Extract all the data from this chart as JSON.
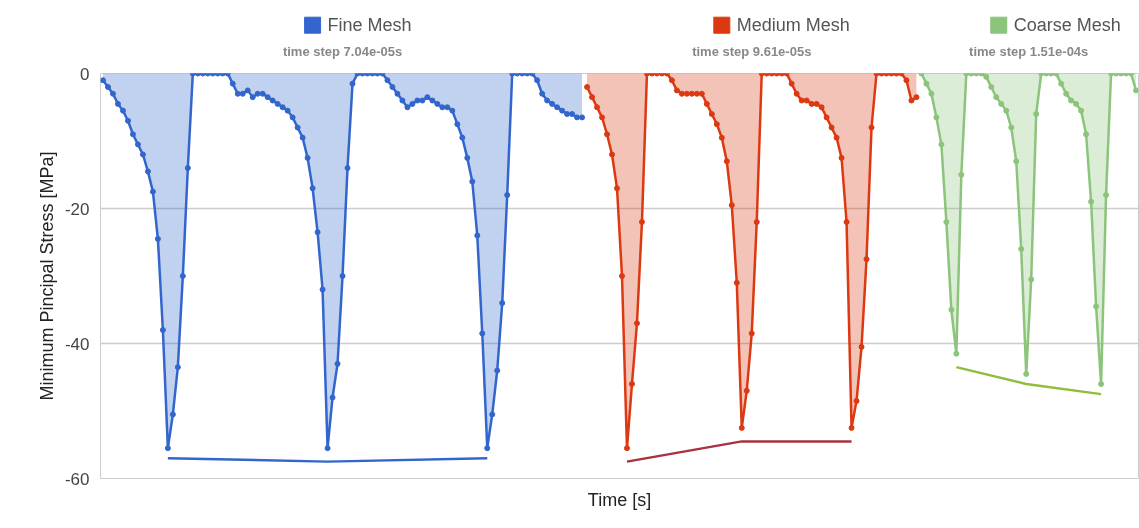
{
  "chart_data": {
    "type": "area",
    "xlabel": "Time [s]",
    "ylabel": "Minimum Pincipal Stress [MPa]",
    "categories": [
      null,
      null,
      null,
      null,
      null,
      null,
      null,
      null,
      null,
      null,
      null,
      null,
      null,
      null,
      null,
      null,
      null,
      null,
      null,
      null,
      null,
      null,
      null,
      null,
      null,
      null,
      null,
      null,
      null,
      null,
      null,
      null,
      null,
      null,
      null,
      null,
      null,
      null,
      null,
      null,
      null,
      null,
      null,
      null,
      null,
      null,
      null,
      null,
      null,
      null,
      null,
      null,
      null,
      null,
      null,
      null,
      null,
      null,
      null,
      null,
      null,
      null,
      null,
      null,
      null,
      null,
      null,
      null,
      null,
      null,
      null,
      null,
      null,
      null,
      null,
      null,
      null,
      null,
      null,
      null,
      null,
      null,
      null,
      null,
      null,
      null,
      null,
      null,
      null,
      null,
      null,
      null,
      null,
      null,
      null,
      null,
      null,
      null,
      null,
      null,
      null,
      null,
      null,
      null,
      null,
      null,
      null,
      null,
      null,
      null,
      null,
      null,
      null,
      null,
      null,
      null,
      null,
      null,
      null,
      null,
      null,
      null,
      null,
      null,
      null,
      null,
      null,
      null,
      null,
      null,
      null,
      null,
      null,
      null,
      null,
      null,
      null,
      null,
      null,
      null,
      null,
      null,
      null,
      null,
      null,
      null,
      null,
      null,
      null,
      null,
      null,
      null,
      null,
      null,
      null,
      null,
      null,
      null,
      null,
      null,
      null,
      null,
      null,
      null,
      null,
      null,
      null,
      null,
      null,
      null,
      null,
      null,
      null,
      null,
      null,
      null,
      null,
      null,
      null,
      null,
      null,
      null,
      null,
      null,
      null,
      null,
      null,
      null,
      null,
      null,
      null,
      null,
      null,
      null,
      null,
      null,
      null,
      null,
      null,
      null,
      null,
      null,
      null,
      null,
      null,
      null,
      null,
      null
    ],
    "ylim": [
      -60,
      0
    ],
    "yticks": [
      0,
      -20,
      -40,
      -60
    ],
    "grid": "y",
    "legend": "top",
    "marker": "circle",
    "tick_labels": "y",
    "annotations": [
      "time step 7.04e-05s",
      "time step 9.61e-05s",
      "time step 1.51e-04s"
    ],
    "series": [
      {
        "name": "Fine Mesh",
        "color": "#3366cc",
        "values": [
          -1,
          -2,
          -3,
          -4.5,
          -5.5,
          -7,
          -9,
          -10.5,
          -12,
          -14.5,
          -17.5,
          -24.5,
          -38,
          -55.5,
          -50.5,
          -43.5,
          -30,
          -14,
          0,
          0,
          0,
          0,
          0,
          0,
          0,
          0,
          -1.5,
          -3,
          -3,
          -2.5,
          -3.5,
          -3,
          -3,
          -3.5,
          -4,
          -4.5,
          -5,
          -5.5,
          -6.5,
          -8,
          -9.5,
          -12.5,
          -17,
          -23.5,
          -32,
          -55.5,
          -48,
          -43,
          -30,
          -14,
          -1.5,
          0,
          0,
          0,
          0,
          0,
          0,
          -1,
          -2,
          -3,
          -4,
          -5,
          -4.5,
          -4,
          -4,
          -3.5,
          -4,
          -4.5,
          -5,
          -5,
          -5.5,
          -7.5,
          -9.5,
          -12.5,
          -16,
          -24,
          -38.5,
          -55.5,
          -50.5,
          -44,
          -34,
          -18,
          0,
          0,
          0,
          0,
          0,
          -1,
          -3,
          -4,
          -4.5,
          -5,
          -5.5,
          -6,
          -6,
          -6.5,
          -6.5,
          null,
          null,
          null,
          null,
          null,
          null,
          null,
          null,
          null,
          null,
          null,
          null,
          null,
          null,
          null,
          null,
          null,
          null,
          null,
          null,
          null,
          null,
          null,
          null,
          null,
          null,
          null,
          null,
          null,
          null,
          null,
          null,
          null,
          null,
          null,
          null,
          null,
          null,
          null,
          null,
          null,
          null,
          null,
          null,
          null,
          null,
          null,
          null,
          null,
          null,
          null,
          null,
          null,
          null,
          null,
          null,
          null,
          null,
          null,
          null,
          null,
          null,
          null,
          null,
          null,
          null,
          null,
          null,
          null,
          null,
          null,
          null,
          null,
          null,
          null,
          null,
          null,
          null,
          null,
          null,
          null,
          null,
          null,
          null,
          null,
          null,
          null,
          null,
          null,
          null,
          null,
          null,
          null,
          null,
          null,
          null,
          null,
          null,
          null,
          null,
          null,
          null,
          null,
          null,
          null,
          null,
          null,
          null,
          null,
          null,
          null
        ]
      },
      {
        "name": "Medium Mesh",
        "color": "#dc3912",
        "values": [
          null,
          null,
          null,
          null,
          null,
          null,
          null,
          null,
          null,
          null,
          null,
          null,
          null,
          null,
          null,
          null,
          null,
          null,
          null,
          null,
          null,
          null,
          null,
          null,
          null,
          null,
          null,
          null,
          null,
          null,
          null,
          null,
          null,
          null,
          null,
          null,
          null,
          null,
          null,
          null,
          null,
          null,
          null,
          null,
          null,
          null,
          null,
          null,
          null,
          null,
          null,
          null,
          null,
          null,
          null,
          null,
          null,
          null,
          null,
          null,
          null,
          null,
          null,
          null,
          null,
          null,
          null,
          null,
          null,
          null,
          null,
          null,
          null,
          null,
          null,
          null,
          null,
          null,
          null,
          null,
          null,
          null,
          null,
          null,
          null,
          null,
          null,
          null,
          null,
          null,
          null,
          null,
          null,
          null,
          null,
          null,
          null,
          -2,
          -3.5,
          -5,
          -6.5,
          -9,
          -12,
          -17,
          -30,
          -55.5,
          -46,
          -37,
          -22,
          0,
          0,
          0,
          0,
          0,
          -1,
          -2.5,
          -3,
          -3,
          -3,
          -3,
          -3,
          -4.5,
          -6,
          -7.5,
          -9.5,
          -13,
          -19.5,
          -31,
          -52.5,
          -47,
          -38.5,
          -22,
          0,
          0,
          0,
          0,
          0,
          0,
          -1.5,
          -3,
          -4,
          -4,
          -4.5,
          -4.5,
          -5,
          -6.5,
          -8,
          -9.5,
          -12.5,
          -22,
          -52.5,
          -48.5,
          -40.5,
          -27.5,
          -8,
          0,
          0,
          0,
          0,
          0,
          0,
          -1,
          -4,
          -3.5,
          null,
          null,
          null,
          null,
          null,
          null,
          null,
          null,
          null,
          null,
          null,
          null,
          null,
          null,
          null,
          null,
          null,
          null,
          null,
          null,
          null,
          null,
          null,
          null,
          null,
          null,
          null,
          null,
          null,
          null,
          null,
          null,
          null,
          null,
          null,
          null,
          null,
          null,
          null,
          null,
          null,
          null,
          null,
          null
        ]
      },
      {
        "name": "Coarse Mesh",
        "color": "#8bc47a",
        "values": [
          null,
          null,
          null,
          null,
          null,
          null,
          null,
          null,
          null,
          null,
          null,
          null,
          null,
          null,
          null,
          null,
          null,
          null,
          null,
          null,
          null,
          null,
          null,
          null,
          null,
          null,
          null,
          null,
          null,
          null,
          null,
          null,
          null,
          null,
          null,
          null,
          null,
          null,
          null,
          null,
          null,
          null,
          null,
          null,
          null,
          null,
          null,
          null,
          null,
          null,
          null,
          null,
          null,
          null,
          null,
          null,
          null,
          null,
          null,
          null,
          null,
          null,
          null,
          null,
          null,
          null,
          null,
          null,
          null,
          null,
          null,
          null,
          null,
          null,
          null,
          null,
          null,
          null,
          null,
          null,
          null,
          null,
          null,
          null,
          null,
          null,
          null,
          null,
          null,
          null,
          null,
          null,
          null,
          null,
          null,
          null,
          null,
          null,
          null,
          null,
          null,
          null,
          null,
          null,
          null,
          null,
          null,
          null,
          null,
          null,
          null,
          null,
          null,
          null,
          null,
          null,
          null,
          null,
          null,
          null,
          null,
          null,
          null,
          null,
          null,
          null,
          null,
          null,
          null,
          null,
          null,
          null,
          null,
          null,
          null,
          null,
          null,
          null,
          null,
          null,
          null,
          null,
          null,
          null,
          null,
          null,
          null,
          null,
          null,
          null,
          null,
          null,
          null,
          null,
          null,
          null,
          null,
          null,
          null,
          null,
          null,
          null,
          null,
          null,
          0,
          -1.5,
          -3,
          -6.5,
          -10.5,
          -22,
          -35,
          -41.5,
          -15,
          0,
          0,
          0,
          0,
          -0.5,
          -2,
          -3.5,
          -4.5,
          -5.5,
          -8,
          -13,
          -26,
          -44.5,
          -30.5,
          -6,
          0,
          0,
          0,
          0,
          -1.5,
          -3,
          -4,
          -4.5,
          -5.5,
          -9,
          -19,
          -34.5,
          -46,
          -18,
          0,
          0,
          0,
          0,
          0,
          -2.5
        ]
      },
      {
        "type": "line",
        "marker": "none",
        "color": "#3366cc",
        "values": [
          null,
          null,
          null,
          null,
          null,
          null,
          null,
          null,
          null,
          null,
          null,
          null,
          null,
          -57,
          null,
          null,
          null,
          null,
          null,
          null,
          null,
          null,
          null,
          null,
          null,
          null,
          null,
          null,
          null,
          null,
          null,
          null,
          null,
          null,
          null,
          null,
          null,
          null,
          null,
          null,
          null,
          null,
          null,
          null,
          null,
          -57.5,
          null,
          null,
          null,
          null,
          null,
          null,
          null,
          null,
          null,
          null,
          null,
          null,
          null,
          null,
          null,
          null,
          null,
          null,
          null,
          null,
          null,
          null,
          null,
          null,
          null,
          null,
          null,
          null,
          null,
          null,
          null,
          -57,
          null,
          null,
          null,
          null,
          null,
          null,
          null,
          null,
          null,
          null,
          null,
          null,
          null,
          null,
          null,
          null,
          null,
          null,
          null,
          null,
          null,
          null,
          null,
          null,
          null,
          null,
          null,
          null,
          null,
          null,
          null,
          null,
          null,
          null,
          null,
          null,
          null,
          null,
          null,
          null,
          null,
          null,
          null,
          null,
          null,
          null,
          null,
          null,
          null,
          null,
          null,
          null,
          null,
          null,
          null,
          null,
          null,
          null,
          null,
          null,
          null,
          null,
          null,
          null,
          null,
          null,
          null,
          null,
          null,
          null,
          null,
          null,
          null,
          null,
          null,
          null,
          null,
          null,
          null,
          null,
          null,
          null,
          null,
          null,
          null,
          null,
          null,
          null,
          null,
          null,
          null,
          null,
          null,
          null,
          null,
          null,
          null,
          null,
          null,
          null,
          null,
          null,
          null,
          null,
          null,
          null,
          null,
          null,
          null,
          null,
          null,
          null,
          null,
          null,
          null,
          null,
          null,
          null,
          null,
          null,
          null,
          null,
          null,
          null,
          null,
          null,
          null,
          null,
          null,
          null
        ]
      },
      {
        "type": "line",
        "marker": "none",
        "color": "#a8323e",
        "values": [
          null,
          null,
          null,
          null,
          null,
          null,
          null,
          null,
          null,
          null,
          null,
          null,
          null,
          null,
          null,
          null,
          null,
          null,
          null,
          null,
          null,
          null,
          null,
          null,
          null,
          null,
          null,
          null,
          null,
          null,
          null,
          null,
          null,
          null,
          null,
          null,
          null,
          null,
          null,
          null,
          null,
          null,
          null,
          null,
          null,
          null,
          null,
          null,
          null,
          null,
          null,
          null,
          null,
          null,
          null,
          null,
          null,
          null,
          null,
          null,
          null,
          null,
          null,
          null,
          null,
          null,
          null,
          null,
          null,
          null,
          null,
          null,
          null,
          null,
          null,
          null,
          null,
          null,
          null,
          null,
          null,
          null,
          null,
          null,
          null,
          null,
          null,
          null,
          null,
          null,
          null,
          null,
          null,
          null,
          null,
          null,
          null,
          null,
          null,
          null,
          null,
          null,
          null,
          null,
          null,
          -57.5,
          null,
          null,
          null,
          null,
          null,
          null,
          null,
          null,
          null,
          null,
          null,
          null,
          null,
          null,
          null,
          null,
          null,
          null,
          null,
          null,
          null,
          null,
          -54.5,
          null,
          null,
          null,
          null,
          null,
          null,
          null,
          null,
          null,
          null,
          null,
          null,
          null,
          null,
          null,
          null,
          null,
          null,
          null,
          null,
          null,
          -54.5,
          null,
          null,
          null,
          null,
          null,
          null,
          null,
          null,
          null,
          null,
          null,
          null,
          null,
          null,
          null,
          null,
          null,
          null,
          null,
          null,
          null,
          null,
          null,
          null,
          null,
          null,
          null,
          null,
          null,
          null,
          null,
          null,
          null,
          null,
          null,
          null,
          null,
          null,
          null,
          null,
          null,
          null,
          null,
          null,
          null,
          null,
          null,
          null,
          null,
          null,
          null,
          null,
          null,
          null,
          null,
          null,
          null
        ]
      },
      {
        "type": "line",
        "marker": "none",
        "color": "#8fbf3a",
        "values": [
          null,
          null,
          null,
          null,
          null,
          null,
          null,
          null,
          null,
          null,
          null,
          null,
          null,
          null,
          null,
          null,
          null,
          null,
          null,
          null,
          null,
          null,
          null,
          null,
          null,
          null,
          null,
          null,
          null,
          null,
          null,
          null,
          null,
          null,
          null,
          null,
          null,
          null,
          null,
          null,
          null,
          null,
          null,
          null,
          null,
          null,
          null,
          null,
          null,
          null,
          null,
          null,
          null,
          null,
          null,
          null,
          null,
          null,
          null,
          null,
          null,
          null,
          null,
          null,
          null,
          null,
          null,
          null,
          null,
          null,
          null,
          null,
          null,
          null,
          null,
          null,
          null,
          null,
          null,
          null,
          null,
          null,
          null,
          null,
          null,
          null,
          null,
          null,
          null,
          null,
          null,
          null,
          null,
          null,
          null,
          null,
          null,
          null,
          null,
          null,
          null,
          null,
          null,
          null,
          null,
          null,
          null,
          null,
          null,
          null,
          null,
          null,
          null,
          null,
          null,
          null,
          null,
          null,
          null,
          null,
          null,
          null,
          null,
          null,
          null,
          null,
          null,
          null,
          null,
          null,
          null,
          null,
          null,
          null,
          null,
          null,
          null,
          null,
          null,
          null,
          null,
          null,
          null,
          null,
          null,
          null,
          null,
          null,
          null,
          null,
          null,
          null,
          null,
          null,
          null,
          null,
          null,
          null,
          null,
          null,
          null,
          null,
          null,
          null,
          null,
          null,
          null,
          null,
          null,
          null,
          null,
          -43.5,
          null,
          null,
          null,
          null,
          null,
          null,
          null,
          null,
          null,
          null,
          null,
          null,
          null,
          -46,
          null,
          null,
          null,
          null,
          null,
          null,
          null,
          null,
          null,
          null,
          null,
          null,
          null,
          null,
          -47.5,
          null,
          null,
          null,
          null,
          null,
          null,
          null
        ]
      }
    ]
  }
}
